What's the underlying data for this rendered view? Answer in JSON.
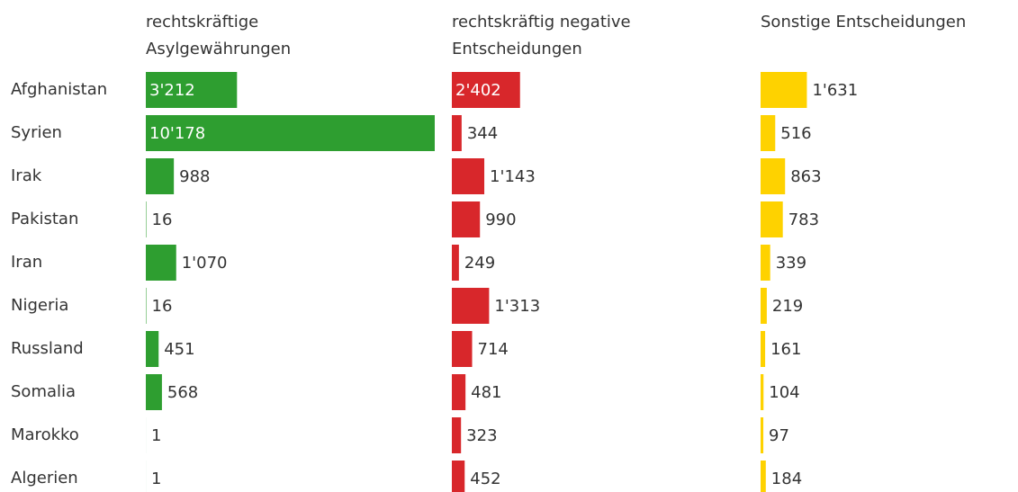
{
  "chart_data": {
    "type": "bar",
    "categories": [
      "Afghanistan",
      "Syrien",
      "Irak",
      "Pakistan",
      "Iran",
      "Nigeria",
      "Russland",
      "Somalia",
      "Marokko",
      "Algerien"
    ],
    "series": [
      {
        "name": [
          "rechtskräftige",
          "Asylgewährungen"
        ],
        "color": "#2e9e30",
        "values": [
          3212,
          10178,
          988,
          16,
          1070,
          16,
          451,
          568,
          1,
          1
        ],
        "value_labels": [
          "3'212",
          "10'178",
          "988",
          "16",
          "1'070",
          "16",
          "451",
          "568",
          "1",
          "1"
        ]
      },
      {
        "name": [
          "rechtskräftig negative",
          "Entscheidungen"
        ],
        "color": "#d8272b",
        "values": [
          2402,
          344,
          1143,
          990,
          249,
          1313,
          714,
          481,
          323,
          452
        ],
        "value_labels": [
          "2'402",
          "344",
          "1'143",
          "990",
          "249",
          "1'313",
          "714",
          "481",
          "323",
          "452"
        ]
      },
      {
        "name": [
          "Sonstige Entscheidungen"
        ],
        "color": "#fed200",
        "values": [
          1631,
          516,
          863,
          783,
          339,
          219,
          161,
          104,
          97,
          184
        ],
        "value_labels": [
          "1'631",
          "516",
          "863",
          "783",
          "339",
          "219",
          "161",
          "104",
          "97",
          "184"
        ]
      }
    ]
  }
}
